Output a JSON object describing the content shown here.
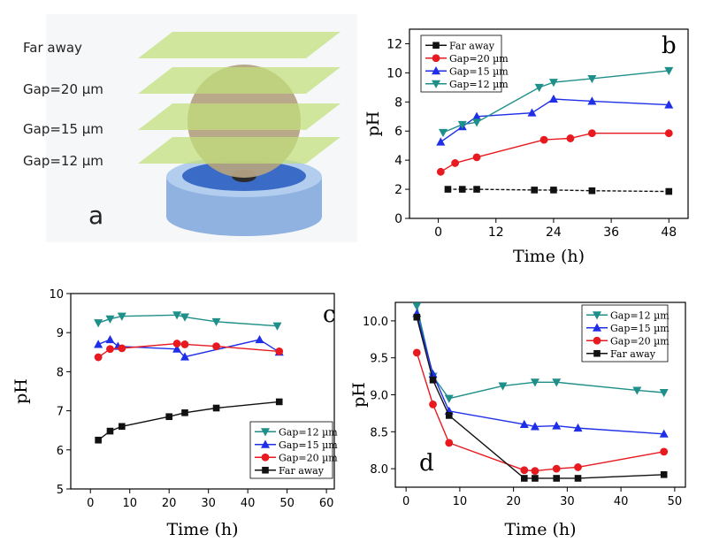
{
  "panel_a": {
    "letter": "a",
    "labels": [
      "Far away",
      "Gap=20 µm",
      "Gap=15 µm",
      "Gap=12 µm"
    ]
  },
  "colors": {
    "teal": "#1f8f8a",
    "blue": "#1f2fe8",
    "red": "#e8191f",
    "black": "#111111",
    "plane": "#c2e07a",
    "sphere": "#b7a86f",
    "pedestal": "#8fb2e0"
  },
  "chart_data": [
    {
      "panel": "b",
      "type": "line",
      "xlabel": "Time (h)",
      "ylabel": "pH",
      "xlim": [
        -6,
        52
      ],
      "ylim": [
        0,
        13
      ],
      "xticks": [
        0,
        12,
        24,
        36,
        48
      ],
      "yticks": [
        0,
        2,
        4,
        6,
        8,
        10,
        12
      ],
      "legend_position": "top-left",
      "series": [
        {
          "name": "Far away",
          "color": "#111111",
          "marker": "square",
          "x": [
            2,
            5,
            8,
            20,
            24,
            32,
            48
          ],
          "y": [
            2.0,
            2.0,
            2.0,
            1.95,
            1.95,
            1.9,
            1.85
          ]
        },
        {
          "name": "Gap=20 µm",
          "color": "#e8191f",
          "marker": "circle",
          "x": [
            0.5,
            3.5,
            8,
            22,
            27.5,
            32,
            48
          ],
          "y": [
            3.2,
            3.8,
            4.2,
            5.4,
            5.5,
            5.85,
            5.85
          ]
        },
        {
          "name": "Gap=15 µm",
          "color": "#1f2fe8",
          "marker": "triangle-up",
          "x": [
            0.5,
            5,
            8,
            19.5,
            24,
            32,
            48
          ],
          "y": [
            5.25,
            6.3,
            7.0,
            7.25,
            8.2,
            8.05,
            7.8
          ]
        },
        {
          "name": "Gap=12 µm",
          "color": "#1f8f8a",
          "marker": "triangle-down",
          "x": [
            1,
            5,
            8,
            21,
            24,
            32,
            48
          ],
          "y": [
            5.9,
            6.45,
            6.6,
            9.0,
            9.35,
            9.6,
            10.15
          ]
        }
      ]
    },
    {
      "panel": "c",
      "type": "line",
      "xlabel": "Time (h)",
      "ylabel": "pH",
      "xlim": [
        -5,
        62
      ],
      "ylim": [
        5,
        10
      ],
      "xticks": [
        0,
        10,
        20,
        30,
        40,
        50,
        60
      ],
      "yticks": [
        5,
        6,
        7,
        8,
        9,
        10
      ],
      "legend_position": "bottom-right",
      "series": [
        {
          "name": "Gap=12 µm",
          "color": "#1f8f8a",
          "marker": "triangle-down",
          "x": [
            2,
            5,
            8,
            22,
            24,
            32,
            47.5
          ],
          "y": [
            9.25,
            9.35,
            9.42,
            9.45,
            9.4,
            9.28,
            9.17
          ]
        },
        {
          "name": "Gap=15 µm",
          "color": "#1f2fe8",
          "marker": "triangle-up",
          "x": [
            2,
            5,
            7,
            22,
            24,
            43,
            48
          ],
          "y": [
            8.7,
            8.82,
            8.65,
            8.58,
            8.38,
            8.82,
            8.5
          ]
        },
        {
          "name": "Gap=20 µm",
          "color": "#e8191f",
          "marker": "circle",
          "x": [
            2,
            5,
            8,
            22,
            24,
            32,
            48
          ],
          "y": [
            8.37,
            8.58,
            8.6,
            8.72,
            8.7,
            8.65,
            8.52
          ]
        },
        {
          "name": "Far away",
          "color": "#111111",
          "marker": "square",
          "x": [
            2,
            5,
            8,
            20,
            24,
            32,
            48
          ],
          "y": [
            6.25,
            6.48,
            6.6,
            6.85,
            6.95,
            7.07,
            7.23
          ]
        }
      ]
    },
    {
      "panel": "d",
      "type": "line",
      "xlabel": "Time (h)",
      "ylabel": "pH",
      "xlim": [
        -2,
        52
      ],
      "ylim": [
        7.75,
        10.25
      ],
      "xticks": [
        0,
        10,
        20,
        30,
        40,
        50
      ],
      "yticks": [
        8.0,
        8.5,
        9.0,
        9.5,
        10.0
      ],
      "ytick_labels": [
        "8.0",
        "8.5",
        "9.0",
        "9.5",
        "10.0"
      ],
      "legend_position": "top-right",
      "series": [
        {
          "name": "Gap=12 µm",
          "color": "#1f8f8a",
          "marker": "triangle-down",
          "x": [
            2,
            5,
            8,
            18,
            24,
            28,
            43,
            48
          ],
          "y": [
            10.2,
            9.25,
            8.95,
            9.12,
            9.17,
            9.17,
            9.06,
            9.03
          ]
        },
        {
          "name": "Gap=15 µm",
          "color": "#1f2fe8",
          "marker": "triangle-up",
          "x": [
            2,
            5,
            8,
            22,
            24,
            28,
            32,
            48
          ],
          "y": [
            10.1,
            9.28,
            8.78,
            8.6,
            8.57,
            8.58,
            8.55,
            8.47
          ]
        },
        {
          "name": "Gap=20 µm",
          "color": "#e8191f",
          "marker": "circle",
          "x": [
            2,
            5,
            8,
            22,
            24,
            28,
            32,
            48
          ],
          "y": [
            9.57,
            8.87,
            8.35,
            7.98,
            7.97,
            8.0,
            8.02,
            8.23
          ]
        },
        {
          "name": "Far away",
          "color": "#111111",
          "marker": "square",
          "x": [
            2,
            5,
            8,
            22,
            24,
            28,
            32,
            48
          ],
          "y": [
            10.05,
            9.2,
            8.72,
            7.87,
            7.87,
            7.87,
            7.87,
            7.92
          ]
        }
      ]
    }
  ]
}
